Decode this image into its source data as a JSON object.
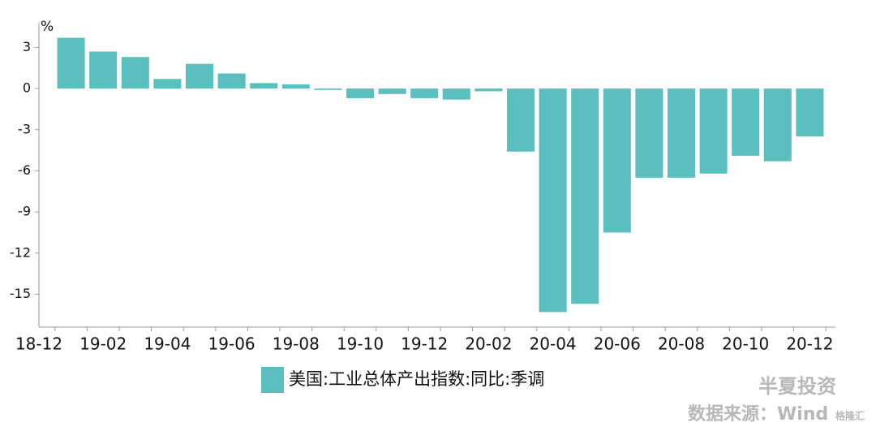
{
  "chart_data": {
    "type": "bar",
    "unit_label": "%",
    "categories": [
      "18-12",
      null,
      "19-02",
      null,
      "19-04",
      null,
      "19-06",
      null,
      "19-08",
      null,
      "19-10",
      null,
      "19-12",
      null,
      "20-02",
      null,
      "20-04",
      null,
      "20-06",
      null,
      "20-08",
      null,
      "20-10",
      null,
      "20-12"
    ],
    "series": [
      {
        "name": "美国:工业总体产出指数:同比:季调",
        "color": "#5bbfc0",
        "values": [
          null,
          3.7,
          2.7,
          2.3,
          0.7,
          1.8,
          1.1,
          0.4,
          0.3,
          -0.1,
          -0.7,
          -0.4,
          -0.7,
          -0.8,
          -0.2,
          -4.6,
          -16.3,
          -15.7,
          -10.5,
          -6.5,
          -6.5,
          -6.2,
          -4.9,
          -5.3,
          -3.5
        ]
      }
    ],
    "ylim": [
      -17.4,
      4.8
    ],
    "yticks": [
      3,
      0,
      -3,
      -6,
      -9,
      -12,
      -15
    ],
    "legend": "bottom",
    "watermarks": [
      "半夏投资",
      "数据来源：Wind",
      "格隆汇"
    ]
  }
}
